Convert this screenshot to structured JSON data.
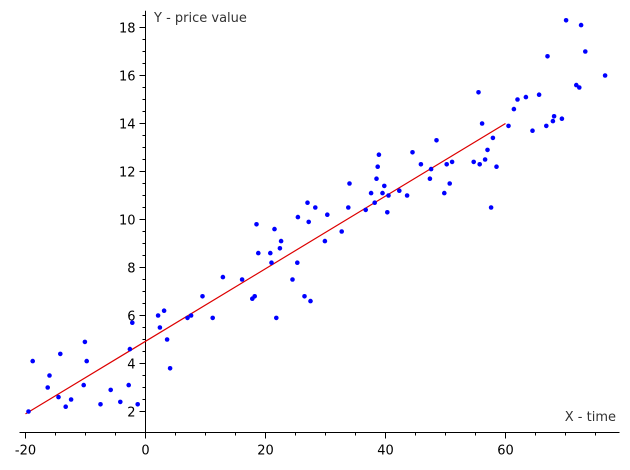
{
  "chart_data": {
    "type": "scatter",
    "xlabel": "X - time",
    "ylabel": "Y - price value",
    "xlim": [
      -21,
      79
    ],
    "ylim": [
      1.5,
      18.7
    ],
    "x_ticks": [
      -20,
      0,
      20,
      40,
      60
    ],
    "y_ticks": [
      2,
      4,
      6,
      8,
      10,
      12,
      14,
      16,
      18
    ],
    "grid": false,
    "colors": {
      "points": "#0000ff",
      "fit_line": "#dd0000",
      "axes": "#000000"
    },
    "series": [
      {
        "type": "scatter",
        "points": [
          [
            -19.5,
            2.0
          ],
          [
            -18.8,
            4.1
          ],
          [
            -16.3,
            3.0
          ],
          [
            -16.0,
            3.5
          ],
          [
            -14.5,
            2.6
          ],
          [
            -14.2,
            4.4
          ],
          [
            -13.3,
            2.2
          ],
          [
            -12.4,
            2.5
          ],
          [
            -10.3,
            3.1
          ],
          [
            -10.1,
            4.9
          ],
          [
            -9.8,
            4.1
          ],
          [
            -7.5,
            2.3
          ],
          [
            -5.8,
            2.9
          ],
          [
            -4.2,
            2.4
          ],
          [
            -2.8,
            3.1
          ],
          [
            -2.6,
            4.6
          ],
          [
            -2.2,
            5.7
          ],
          [
            -1.3,
            2.3
          ],
          [
            2.1,
            6.0
          ],
          [
            2.4,
            5.5
          ],
          [
            3.1,
            6.2
          ],
          [
            3.6,
            5.0
          ],
          [
            4.1,
            3.8
          ],
          [
            7.0,
            5.9
          ],
          [
            7.6,
            6.0
          ],
          [
            9.5,
            6.8
          ],
          [
            11.2,
            5.9
          ],
          [
            12.9,
            7.6
          ],
          [
            16.1,
            7.5
          ],
          [
            17.8,
            6.7
          ],
          [
            18.2,
            6.8
          ],
          [
            18.5,
            9.8
          ],
          [
            18.8,
            8.6
          ],
          [
            20.8,
            8.6
          ],
          [
            21.0,
            8.2
          ],
          [
            21.5,
            9.6
          ],
          [
            21.8,
            5.9
          ],
          [
            22.4,
            8.8
          ],
          [
            22.6,
            9.1
          ],
          [
            24.5,
            7.5
          ],
          [
            25.3,
            8.2
          ],
          [
            25.4,
            10.1
          ],
          [
            26.5,
            6.8
          ],
          [
            27.0,
            10.7
          ],
          [
            27.2,
            9.9
          ],
          [
            27.5,
            6.6
          ],
          [
            28.3,
            10.5
          ],
          [
            29.9,
            9.1
          ],
          [
            30.3,
            10.2
          ],
          [
            32.7,
            9.5
          ],
          [
            33.8,
            10.5
          ],
          [
            34.0,
            11.5
          ],
          [
            36.7,
            10.4
          ],
          [
            37.6,
            11.1
          ],
          [
            38.2,
            10.7
          ],
          [
            38.5,
            11.7
          ],
          [
            38.7,
            12.2
          ],
          [
            38.9,
            12.7
          ],
          [
            39.5,
            11.1
          ],
          [
            39.8,
            11.4
          ],
          [
            40.3,
            10.3
          ],
          [
            40.5,
            11.0
          ],
          [
            42.3,
            11.2
          ],
          [
            43.6,
            11.0
          ],
          [
            44.5,
            12.8
          ],
          [
            45.9,
            12.3
          ],
          [
            47.4,
            11.7
          ],
          [
            47.6,
            12.1
          ],
          [
            48.5,
            13.3
          ],
          [
            49.8,
            11.1
          ],
          [
            50.2,
            12.3
          ],
          [
            50.7,
            11.5
          ],
          [
            51.1,
            12.4
          ],
          [
            54.7,
            12.4
          ],
          [
            55.5,
            15.3
          ],
          [
            55.7,
            12.3
          ],
          [
            56.1,
            14.0
          ],
          [
            56.6,
            12.5
          ],
          [
            57.0,
            12.9
          ],
          [
            57.6,
            10.5
          ],
          [
            57.9,
            13.4
          ],
          [
            58.5,
            12.2
          ],
          [
            60.5,
            13.9
          ],
          [
            61.4,
            14.6
          ],
          [
            62.0,
            15.0
          ],
          [
            63.4,
            15.1
          ],
          [
            64.5,
            13.7
          ],
          [
            65.6,
            15.2
          ],
          [
            66.8,
            13.9
          ],
          [
            67.0,
            16.8
          ],
          [
            67.9,
            14.1
          ],
          [
            68.1,
            14.3
          ],
          [
            69.4,
            14.2
          ],
          [
            70.1,
            18.3
          ],
          [
            71.8,
            15.6
          ],
          [
            72.3,
            15.5
          ],
          [
            72.6,
            18.1
          ],
          [
            73.3,
            17.0
          ],
          [
            76.6,
            16.0
          ]
        ]
      },
      {
        "type": "line",
        "points": [
          [
            -20,
            1.9
          ],
          [
            60,
            14.0
          ]
        ]
      }
    ]
  }
}
